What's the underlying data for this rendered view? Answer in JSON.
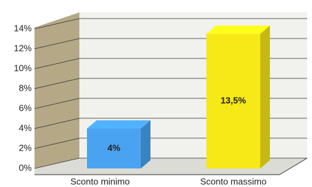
{
  "chart_data": {
    "type": "bar3d",
    "categories": [
      "Sconto minimo",
      "Sconto massimo"
    ],
    "series": [
      {
        "color": "#4aa3f0",
        "values": [
          4,
          13.5
        ],
        "value_labels": [
          "4%",
          "13,5%"
        ]
      }
    ],
    "colors": [
      "#4aa3f0",
      "#f7e817"
    ],
    "ylim": [
      0,
      14
    ],
    "yticks": [
      {
        "value": 0,
        "label": "0%"
      },
      {
        "value": 2,
        "label": "2%"
      },
      {
        "value": 4,
        "label": "4%"
      },
      {
        "value": 6,
        "label": "6%"
      },
      {
        "value": 8,
        "label": "8%"
      },
      {
        "value": 10,
        "label": "10%"
      },
      {
        "value": 12,
        "label": "12%"
      },
      {
        "value": 14,
        "label": "14%"
      }
    ],
    "grid": true
  }
}
